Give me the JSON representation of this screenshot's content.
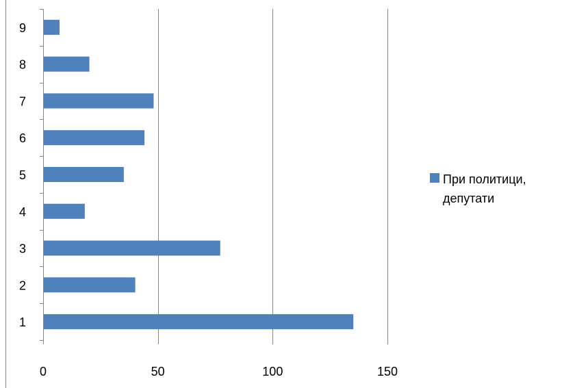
{
  "chart_data": {
    "type": "bar",
    "orientation": "horizontal",
    "categories": [
      "1",
      "2",
      "3",
      "4",
      "5",
      "6",
      "7",
      "8",
      "9"
    ],
    "series": [
      {
        "name": "При политици, депутати",
        "values": [
          135,
          40,
          77,
          18,
          35,
          44,
          48,
          20,
          7
        ],
        "color": "#4F81BD"
      }
    ],
    "xlim": [
      0,
      150
    ],
    "x_ticks": [
      0,
      50,
      100,
      150
    ],
    "title": "",
    "xlabel": "",
    "ylabel": "",
    "grid": "vertical",
    "legend_position": "right"
  },
  "colors": {
    "gridline": "#868686",
    "axis": "#868686",
    "frame": "#868686"
  }
}
